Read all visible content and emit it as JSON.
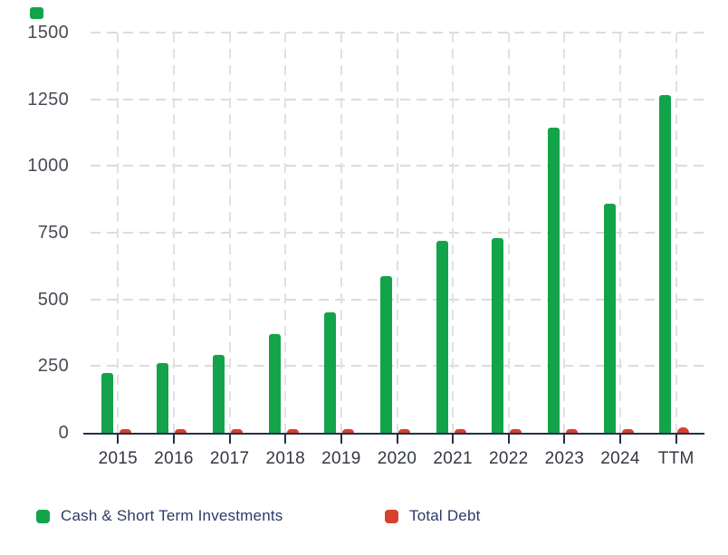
{
  "page": {
    "background": "#ffffff"
  },
  "logo": {
    "name": "green-square-mark",
    "color": "#13a34a"
  },
  "colors": {
    "cash_green": "#13a34a",
    "debt_red": "#d7402e",
    "axis_line": "#24304a",
    "gridline": "#dcdcdc",
    "y_label_text": "#474b54",
    "x_label_text": "#343842",
    "legend_text": "#2d3a66",
    "background": "#ffffff"
  },
  "chart_data": {
    "type": "bar",
    "title": "",
    "xlabel": "",
    "ylabel": "",
    "categories": [
      "2015",
      "2016",
      "2017",
      "2018",
      "2019",
      "2020",
      "2021",
      "2022",
      "2023",
      "2024",
      "TTM"
    ],
    "series": [
      {
        "name": "Cash & Short Term Investments",
        "color": "#13a34a",
        "values": [
          225,
          260,
          292,
          370,
          451,
          588,
          721,
          731,
          1142,
          860,
          1266
        ]
      },
      {
        "name": "Total Debt",
        "color": "#d7402e",
        "values": [
          13,
          13,
          13,
          13,
          13,
          13,
          13,
          13,
          13,
          13,
          19
        ]
      }
    ],
    "ylim": [
      0,
      1500
    ],
    "y_ticks": [
      0,
      250,
      500,
      750,
      1000,
      1250,
      1500
    ],
    "grid": "dashed-horizontal-and-vertical",
    "legend_position": "bottom-left"
  }
}
